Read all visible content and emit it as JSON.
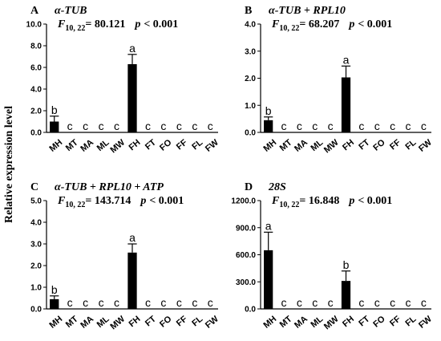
{
  "figure": {
    "ylabel": "Relative expression level"
  },
  "chart_data": [
    {
      "type": "bar",
      "panel": "A",
      "gene": "α-TUB",
      "stat_label": "F",
      "stat_df": "10, 22",
      "stat_value": "= 80.121",
      "p_text": "p",
      "p_value": "< 0.001",
      "categories": [
        "MH",
        "MT",
        "MA",
        "ML",
        "MW",
        "FH",
        "FT",
        "FO",
        "FF",
        "FL",
        "FW"
      ],
      "values": [
        1.0,
        0,
        0,
        0,
        0,
        6.3,
        0,
        0,
        0,
        0,
        0
      ],
      "errors": [
        0.5,
        0,
        0,
        0,
        0,
        0.9,
        0,
        0,
        0,
        0,
        0
      ],
      "letters": [
        "b",
        "c",
        "c",
        "c",
        "c",
        "a",
        "c",
        "c",
        "c",
        "c",
        "c"
      ],
      "ylim": [
        0,
        10
      ],
      "yticks": [
        "0.0",
        "2.0",
        "4.0",
        "6.0",
        "8.0",
        "10.0"
      ]
    },
    {
      "type": "bar",
      "panel": "B",
      "gene": "α-TUB + RPL10",
      "stat_label": "F",
      "stat_df": "10, 22",
      "stat_value": "= 68.207",
      "p_text": "p",
      "p_value": "< 0.001",
      "categories": [
        "MH",
        "MT",
        "MA",
        "ML",
        "MW",
        "FH",
        "FT",
        "FO",
        "FF",
        "FL",
        "FW"
      ],
      "values": [
        0.45,
        0,
        0,
        0,
        0,
        2.03,
        0,
        0,
        0,
        0,
        0
      ],
      "errors": [
        0.12,
        0,
        0,
        0,
        0,
        0.42,
        0,
        0,
        0,
        0,
        0
      ],
      "letters": [
        "b",
        "c",
        "c",
        "c",
        "c",
        "a",
        "c",
        "c",
        "c",
        "c",
        "c"
      ],
      "ylim": [
        0,
        4
      ],
      "yticks": [
        "0.0",
        "1.0",
        "2.0",
        "3.0",
        "4.0"
      ]
    },
    {
      "type": "bar",
      "panel": "C",
      "gene": "α-TUB + RPL10 + ATP",
      "stat_label": "F",
      "stat_df": "10, 22",
      "stat_value": "= 143.714",
      "p_text": "p",
      "p_value": "< 0.001",
      "categories": [
        "MH",
        "MT",
        "MA",
        "ML",
        "MW",
        "FH",
        "FT",
        "FO",
        "FF",
        "FL",
        "FW"
      ],
      "values": [
        0.45,
        0,
        0,
        0,
        0,
        2.6,
        0,
        0,
        0,
        0,
        0
      ],
      "errors": [
        0.15,
        0,
        0,
        0,
        0,
        0.4,
        0,
        0,
        0,
        0,
        0
      ],
      "letters": [
        "b",
        "c",
        "c",
        "c",
        "c",
        "a",
        "c",
        "c",
        "c",
        "c",
        "c"
      ],
      "ylim": [
        0,
        5
      ],
      "yticks": [
        "0.0",
        "1.0",
        "2.0",
        "3.0",
        "4.0",
        "5.0"
      ]
    },
    {
      "type": "bar",
      "panel": "D",
      "gene": "28S",
      "stat_label": "F",
      "stat_df": "10, 22",
      "stat_value": "= 16.848",
      "p_text": "p",
      "p_value": "< 0.001",
      "categories": [
        "MH",
        "MT",
        "MA",
        "ML",
        "MW",
        "FH",
        "FT",
        "FO",
        "FF",
        "FL",
        "FW"
      ],
      "values": [
        650,
        0,
        0,
        0,
        0,
        310,
        0,
        0,
        0,
        0,
        0
      ],
      "errors": [
        200,
        0,
        0,
        0,
        0,
        110,
        0,
        0,
        0,
        0,
        0
      ],
      "letters": [
        "a",
        "c",
        "c",
        "c",
        "c",
        "b",
        "c",
        "c",
        "c",
        "c",
        "c"
      ],
      "ylim": [
        0,
        1200
      ],
      "yticks": [
        "0.0",
        "300.0",
        "600.0",
        "900.0",
        "1200.0"
      ]
    }
  ]
}
